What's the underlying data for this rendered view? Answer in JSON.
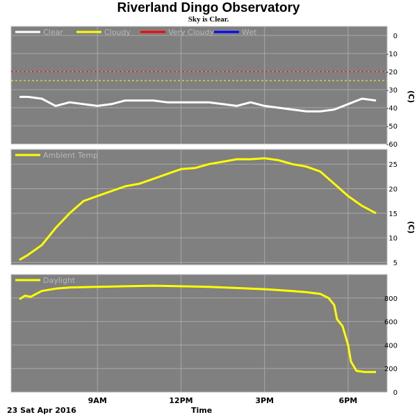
{
  "title": "Riverland Dingo Observatory",
  "subtitle": "Sky is Clear.",
  "date_label": "23 Sat Apr 2016",
  "x_axis_title": "Time",
  "colors": {
    "panel_bg": "#808080",
    "grid": "#a8a8a8",
    "clear": "#ffffff",
    "cloudy": "#ffff00",
    "very_cloudy": "#ff0000",
    "wet": "#0000ff",
    "ambient": "#ffff00",
    "daylight": "#ffff00",
    "legend_text": "#b8b8b8"
  },
  "chart_data": [
    {
      "type": "line",
      "name": "sky",
      "legend": [
        "Clear",
        "Cloudy",
        "Very Cloudy",
        "Wet"
      ],
      "unit": "(C)",
      "ylim": [
        -60,
        5
      ],
      "yticks": [
        "0",
        "-10",
        "-20",
        "-30",
        "-40",
        "-50",
        "-60"
      ],
      "thresholds": [
        {
          "name": "Very Cloudy",
          "value": -20
        },
        {
          "name": "Cloudy",
          "value": -25
        }
      ],
      "x_hours": [
        6.2,
        6.5,
        7.0,
        7.5,
        8.0,
        8.5,
        9.0,
        9.5,
        10.0,
        10.5,
        11.0,
        11.5,
        12.0,
        12.5,
        13.0,
        13.5,
        14.0,
        14.5,
        15.0,
        15.5,
        16.0,
        16.5,
        17.0,
        17.5,
        18.0,
        18.5,
        19.0
      ],
      "series": [
        {
          "name": "Clear",
          "values": [
            -34,
            -34,
            -35,
            -39,
            -37,
            -38,
            -39,
            -38,
            -36,
            -36,
            -36,
            -37,
            -37,
            -37,
            -37,
            -38,
            -39,
            -37,
            -39,
            -40,
            -41,
            -42,
            -42,
            -41,
            -38,
            -35,
            -36
          ]
        }
      ]
    },
    {
      "type": "line",
      "name": "ambient",
      "legend": [
        "Ambient Temp"
      ],
      "unit": "(C)",
      "ylim": [
        4.5,
        28
      ],
      "yticks": [
        "25",
        "20",
        "15",
        "10",
        "5"
      ],
      "x_hours": [
        6.2,
        6.5,
        7.0,
        7.5,
        8.0,
        8.5,
        9.0,
        9.5,
        10.0,
        10.5,
        11.0,
        11.5,
        12.0,
        12.5,
        13.0,
        13.5,
        14.0,
        14.5,
        15.0,
        15.5,
        16.0,
        16.5,
        17.0,
        17.5,
        18.0,
        18.5,
        19.0
      ],
      "series": [
        {
          "name": "Ambient Temp",
          "values": [
            5.5,
            6.5,
            8.5,
            12,
            15,
            17.5,
            18.5,
            19.5,
            20.5,
            21,
            22,
            23,
            24,
            24.2,
            25,
            25.5,
            26,
            26,
            26.2,
            25.8,
            25,
            24.5,
            23.5,
            21,
            18.5,
            16.5,
            15
          ]
        }
      ]
    },
    {
      "type": "line",
      "name": "daylight",
      "legend": [
        "Daylight"
      ],
      "unit": "",
      "ylim": [
        0,
        1000
      ],
      "yticks": [
        "800",
        "600",
        "400",
        "200",
        "0"
      ],
      "xticks": [
        "9AM",
        "12PM",
        "3PM",
        "6PM"
      ],
      "x_tick_hours": [
        9,
        12,
        15,
        18
      ],
      "x_hours": [
        6.2,
        6.4,
        6.6,
        7.0,
        7.5,
        8.0,
        9.0,
        10.0,
        11.0,
        12.0,
        13.0,
        14.0,
        15.0,
        16.0,
        16.5,
        17.0,
        17.3,
        17.5,
        17.6,
        17.8,
        18.0,
        18.1,
        18.3,
        18.6,
        19.0
      ],
      "series": [
        {
          "name": "Daylight",
          "values": [
            790,
            820,
            810,
            860,
            880,
            890,
            895,
            900,
            905,
            900,
            895,
            885,
            875,
            860,
            850,
            835,
            800,
            740,
            620,
            560,
            400,
            260,
            180,
            170,
            170
          ]
        }
      ]
    }
  ]
}
